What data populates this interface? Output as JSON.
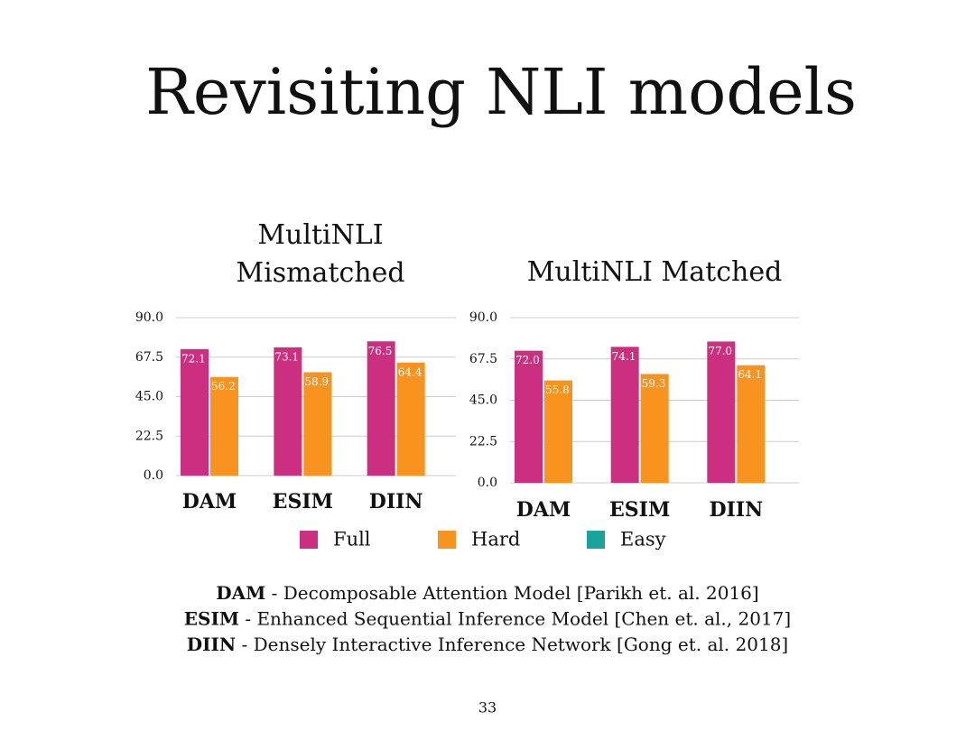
{
  "title": "Revisiting NLI models",
  "chart_data": [
    {
      "type": "bar",
      "title": "MultiNLI Mismatched",
      "categories": [
        "DAM",
        "ESIM",
        "DIIN"
      ],
      "series": [
        {
          "name": "Full",
          "color": "#cc2f7f",
          "values": [
            72.1,
            73.1,
            76.5
          ],
          "value_labels": [
            "72.1",
            "73.1",
            "76.5"
          ]
        },
        {
          "name": "Hard",
          "color": "#f7931e",
          "values": [
            56.2,
            58.9,
            64.4
          ],
          "value_labels": [
            "56.2",
            "58.9",
            "64.4"
          ]
        },
        {
          "name": "Easy",
          "color": "#1aa39a",
          "values": [
            null,
            null,
            null
          ]
        }
      ],
      "ylim": [
        0,
        90
      ],
      "yticks": [
        {
          "value": 0,
          "label": "0.0"
        },
        {
          "value": 22.5,
          "label": "22.5"
        },
        {
          "value": 45,
          "label": "45.0"
        },
        {
          "value": 67.5,
          "label": "67.5"
        },
        {
          "value": 90,
          "label": "90.0"
        }
      ],
      "grid": true
    },
    {
      "type": "bar",
      "title": "MultiNLI Matched",
      "categories": [
        "DAM",
        "ESIM",
        "DIIN"
      ],
      "series": [
        {
          "name": "Full",
          "color": "#cc2f7f",
          "values": [
            72.0,
            74.1,
            77.0
          ],
          "value_labels": [
            "72.0",
            "74.1",
            "77.0"
          ]
        },
        {
          "name": "Hard",
          "color": "#f7931e",
          "values": [
            55.8,
            59.3,
            64.1
          ],
          "value_labels": [
            "55.8",
            "59.3",
            "64.1"
          ]
        },
        {
          "name": "Easy",
          "color": "#1aa39a",
          "values": [
            null,
            null,
            null
          ]
        }
      ],
      "ylim": [
        0,
        90
      ],
      "yticks": [
        {
          "value": 0,
          "label": "0.0"
        },
        {
          "value": 22.5,
          "label": "22.5"
        },
        {
          "value": 45,
          "label": "45.0"
        },
        {
          "value": 67.5,
          "label": "67.5"
        },
        {
          "value": 90,
          "label": "90.0"
        }
      ],
      "grid": true
    }
  ],
  "notes": [
    {
      "abbr": "DAM",
      "text": " - Decomposable Attention Model [Parikh et. al. 2016]"
    },
    {
      "abbr": "ESIM",
      "text": " - Enhanced Sequential Inference Model [Chen et. al., 2017]"
    },
    {
      "abbr": "DIIN",
      "text": " - Densely Interactive Inference Network [Gong et. al. 2018]"
    }
  ],
  "page_number": "33"
}
